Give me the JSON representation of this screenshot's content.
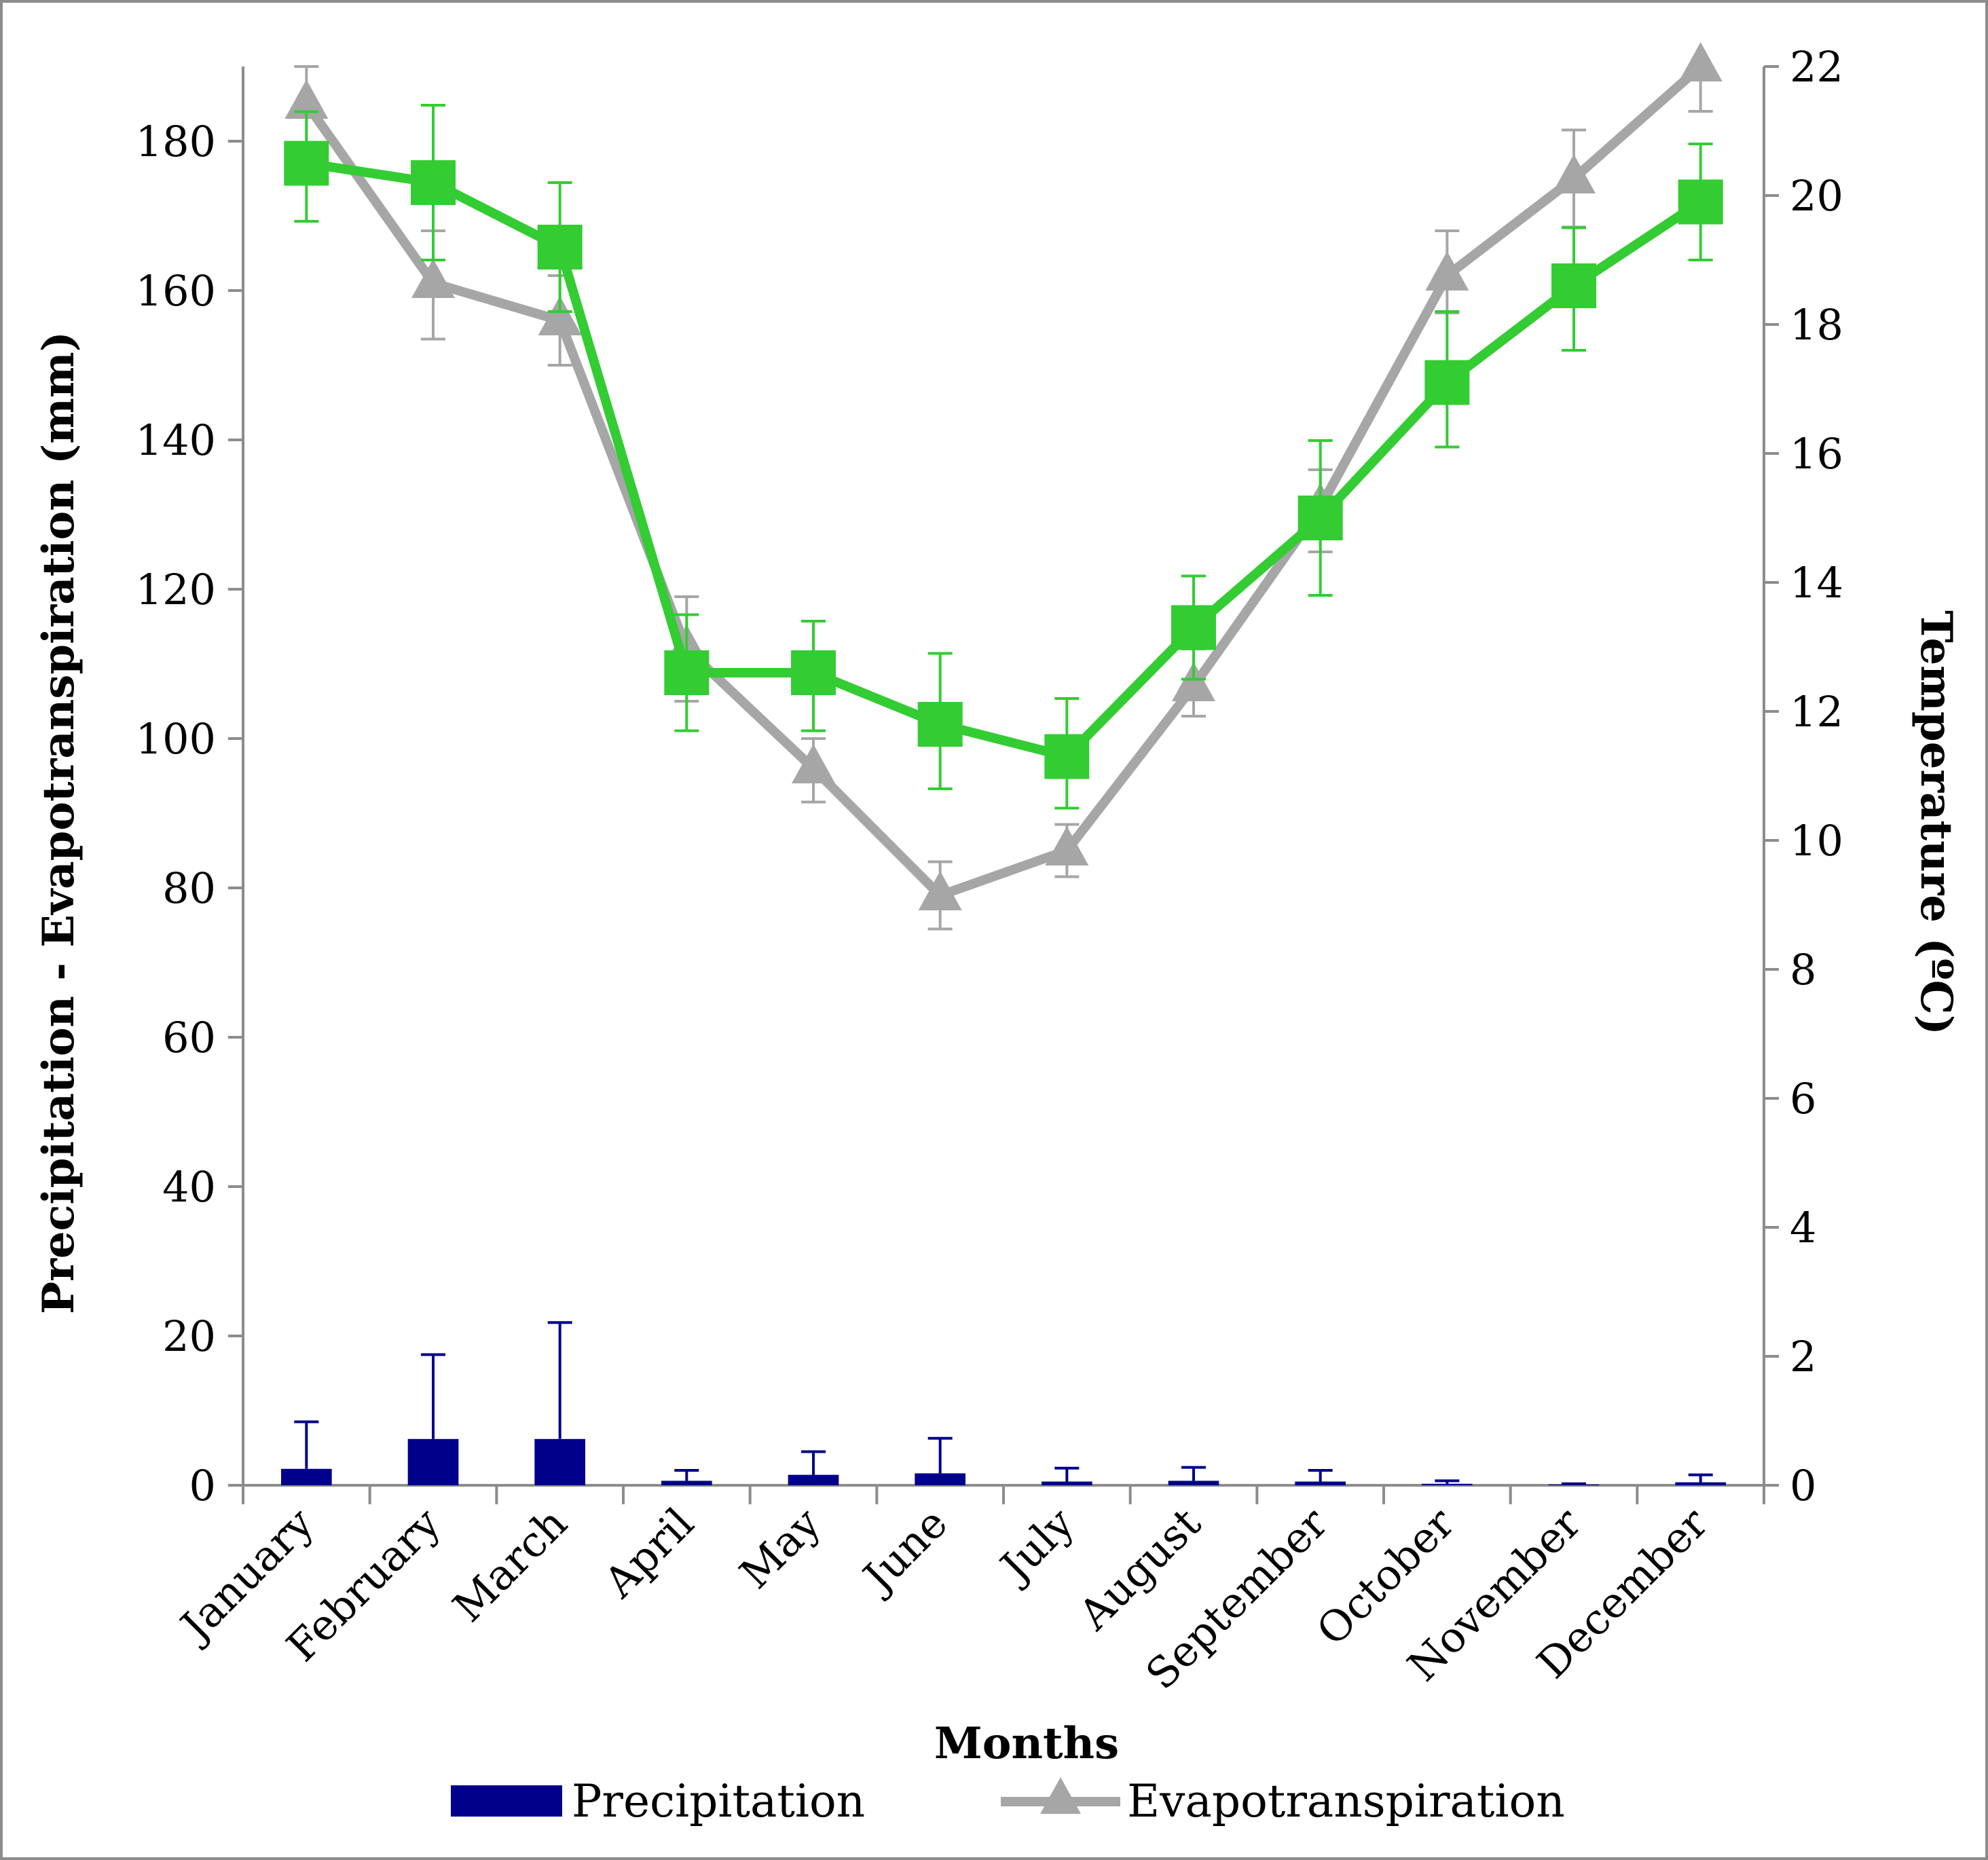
{
  "chart_data": {
    "type": "bar+line",
    "categories": [
      "January",
      "February",
      "March",
      "April",
      "May",
      "June",
      "July",
      "August",
      "September",
      "October",
      "November",
      "December"
    ],
    "xlabel": "Months",
    "ylabel_left": "Precipitation - Evapotranspiration (mm)",
    "ylabel_right": "Temperature (ºC)",
    "ylim_left": [
      0,
      190
    ],
    "yticks_left": [
      0,
      20,
      40,
      60,
      80,
      100,
      120,
      140,
      160,
      180
    ],
    "ylim_right": [
      0,
      22
    ],
    "yticks_right": [
      0,
      2,
      4,
      6,
      8,
      10,
      12,
      14,
      16,
      18,
      20,
      22
    ],
    "grid": false,
    "legend_position": "bottom",
    "series": [
      {
        "name": "Precipitation",
        "kind": "bar",
        "axis": "left",
        "color": "#00008B",
        "values": [
          2.2,
          6.2,
          6.2,
          0.6,
          1.4,
          1.6,
          0.5,
          0.6,
          0.5,
          0.2,
          0.1,
          0.4
        ],
        "error_upper": [
          8.5,
          17.5,
          21.8,
          2.0,
          4.5,
          6.3,
          2.3,
          2.4,
          2.0,
          0.6,
          0.2,
          1.4
        ]
      },
      {
        "name": "Evapotranspiration",
        "kind": "line",
        "marker": "triangle",
        "axis": "left",
        "color": "#A6A6A6",
        "values": [
          185,
          161,
          156,
          112,
          96,
          79,
          85,
          107,
          131,
          162,
          175,
          190
        ],
        "error_low": [
          179,
          153.5,
          150,
          105,
          91.5,
          74.5,
          81.5,
          103,
          125,
          157,
          168.5,
          184
        ],
        "error_high": [
          190,
          168,
          162,
          119,
          100,
          83.5,
          88.5,
          112,
          136,
          168,
          181.5,
          190
        ]
      },
      {
        "name": "",
        "kind": "line",
        "marker": "square",
        "axis": "right",
        "color": "#33CC33",
        "values": [
          20.5,
          20.2,
          19.2,
          12.6,
          12.6,
          11.8,
          11.3,
          13.3,
          15.0,
          17.1,
          18.6,
          19.9
        ],
        "error_low": [
          19.6,
          19.0,
          18.2,
          11.7,
          11.7,
          10.8,
          10.5,
          12.5,
          13.8,
          16.1,
          17.6,
          19.0
        ],
        "error_high": [
          21.3,
          21.4,
          20.2,
          13.5,
          13.4,
          12.9,
          12.2,
          14.1,
          16.2,
          18.2,
          19.5,
          20.8
        ]
      }
    ]
  }
}
